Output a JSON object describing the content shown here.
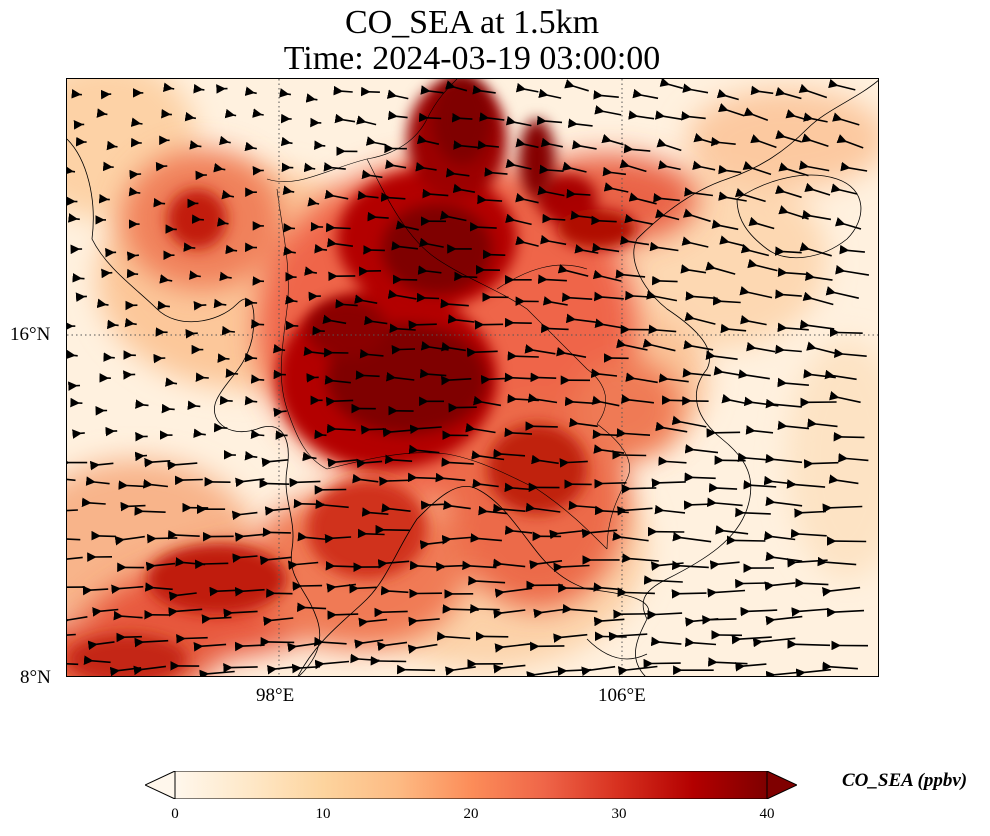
{
  "title": {
    "line1": "CO_SEA at 1.5km",
    "line2": "Time: 2024-03-19 03:00:00"
  },
  "map": {
    "lon_range": [
      93,
      112
    ],
    "lat_range": [
      8,
      21.9
    ],
    "lon_ticks": [
      {
        "value": 98,
        "label": "98°E"
      },
      {
        "value": 106,
        "label": "106°E"
      }
    ],
    "lat_ticks": [
      {
        "value": 16,
        "label": "16°N"
      },
      {
        "value": 8,
        "label": "8°N"
      }
    ],
    "gridlines": "dotted",
    "coastlines": true,
    "borders": true,
    "wind_vectors": true,
    "colormap": "OrRd"
  },
  "colorbar": {
    "label": "CO_SEA (ppbv)",
    "min": 0,
    "max": 40,
    "ticks": [
      "0",
      "10",
      "20",
      "30",
      "40"
    ],
    "extend": "both",
    "colors": [
      "#fff7ec",
      "#fee8c8",
      "#fdd49e",
      "#fdbb84",
      "#fc8d59",
      "#ef6548",
      "#d7301f",
      "#b30000",
      "#7f0000"
    ]
  }
}
